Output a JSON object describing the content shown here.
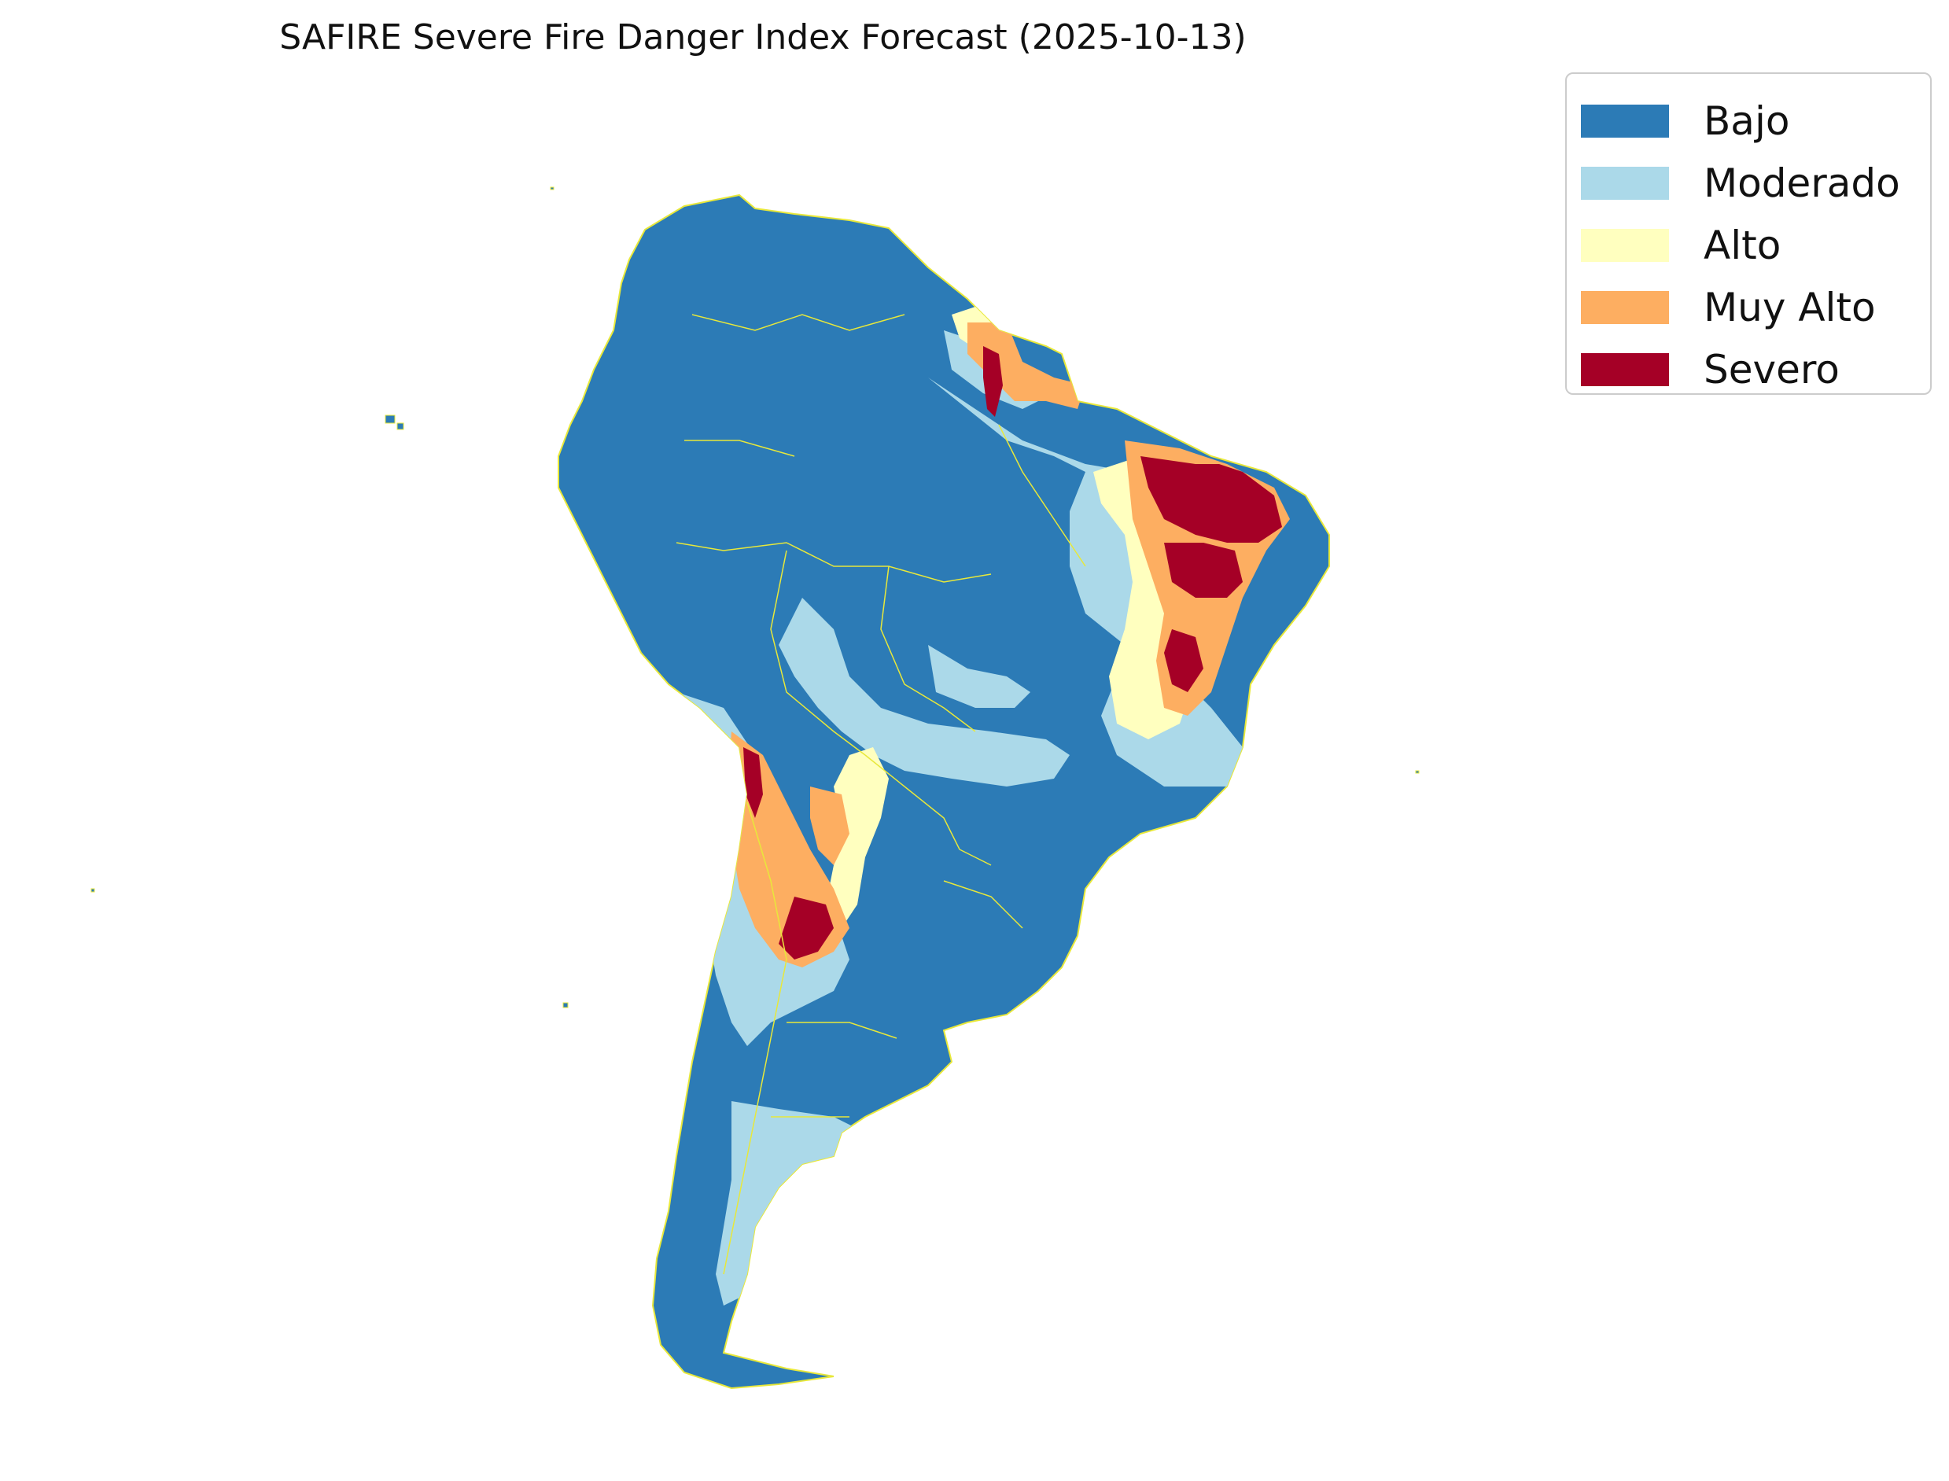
{
  "title": "SAFIRE Severe Fire Danger Index Forecast (2025-10-13)",
  "legend": {
    "items": [
      {
        "label": "Bajo",
        "color": "#2c7bb6"
      },
      {
        "label": "Moderado",
        "color": "#abd9e9"
      },
      {
        "label": "Alto",
        "color": "#ffffbf"
      },
      {
        "label": "Muy Alto",
        "color": "#fdae61"
      },
      {
        "label": "Severo",
        "color": "#a50026"
      }
    ]
  },
  "map": {
    "region": "South America",
    "border_color": "#e8e83a",
    "background_color": "#ffffff"
  }
}
